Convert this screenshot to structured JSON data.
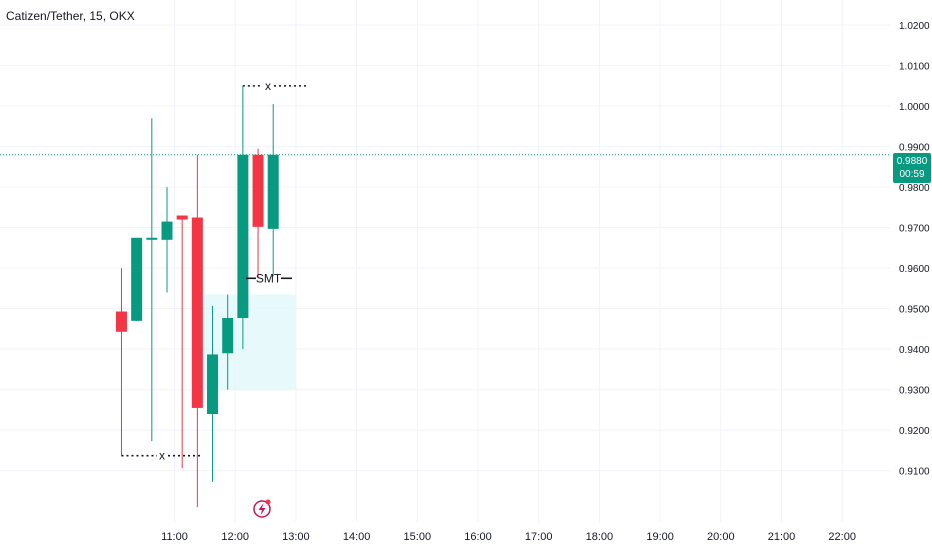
{
  "header": {
    "title": "Catizen/Tether, 15, OKX"
  },
  "last_price": {
    "value": "0.9880",
    "countdown": "00:59",
    "color": "#089981"
  },
  "colors": {
    "up": "#089981",
    "down": "#f23645",
    "grid": "#f0f3fa",
    "axis_text": "#131722",
    "zone": "#e0f7fa",
    "last_line": "#089981",
    "marker": "#c2185b"
  },
  "annotations": {
    "smt_label": "SMT",
    "x_label_top": "x",
    "x_label_bottom": "x"
  },
  "chart_data": {
    "type": "candlestick",
    "title": "Catizen/Tether, 15, OKX",
    "interval": "15",
    "exchange": "OKX",
    "x_ticks": [
      "11:00",
      "12:00",
      "13:00",
      "14:00",
      "15:00",
      "16:00",
      "17:00",
      "18:00",
      "19:00",
      "20:00",
      "21:00",
      "22:00"
    ],
    "y_ticks": [
      "0.9100",
      "0.9200",
      "0.9300",
      "0.9400",
      "0.9500",
      "0.9600",
      "0.9700",
      "0.9800",
      "0.9900",
      "1.0000",
      "1.0100",
      "1.0200"
    ],
    "ylim": [
      0.9003,
      1.0262
    ],
    "candles": [
      {
        "time": "10:15",
        "open": 0.9493,
        "high": 0.96,
        "low": 0.9137,
        "close": 0.9443
      },
      {
        "time": "10:30",
        "open": 0.947,
        "high": 0.9665,
        "low": 0.947,
        "close": 0.9675
      },
      {
        "time": "10:45",
        "open": 0.9673,
        "high": 0.997,
        "low": 0.9173,
        "close": 0.9675
      },
      {
        "time": "11:00",
        "open": 0.967,
        "high": 0.98,
        "low": 0.954,
        "close": 0.9715
      },
      {
        "time": "11:15",
        "open": 0.973,
        "high": 0.973,
        "low": 0.9106,
        "close": 0.972
      },
      {
        "time": "11:30",
        "open": 0.9725,
        "high": 0.988,
        "low": 0.901,
        "close": 0.9255
      },
      {
        "time": "11:45",
        "open": 0.924,
        "high": 0.9507,
        "low": 0.9072,
        "close": 0.9387
      },
      {
        "time": "12:00",
        "open": 0.939,
        "high": 0.9535,
        "low": 0.93,
        "close": 0.9477
      },
      {
        "time": "12:15",
        "open": 0.9477,
        "high": 1.005,
        "low": 0.94,
        "close": 0.988
      },
      {
        "time": "12:30",
        "open": 0.988,
        "high": 0.9895,
        "low": 0.9575,
        "close": 0.9702
      },
      {
        "time": "12:45",
        "open": 0.9697,
        "high": 1.0005,
        "low": 0.958,
        "close": 0.988
      }
    ],
    "last_price": 0.988,
    "levels": [
      {
        "label": "x",
        "price": 1.005,
        "from": "12:15",
        "to": "14:00"
      },
      {
        "label": "x",
        "price": 0.9137,
        "from": "10:15",
        "to": "11:45"
      },
      {
        "label": "SMT",
        "price": 0.9575,
        "from": "12:30",
        "to": "13:00"
      }
    ],
    "zone": {
      "top": 0.9535,
      "bottom": 0.93,
      "from": "12:00",
      "to": "13:00"
    }
  }
}
